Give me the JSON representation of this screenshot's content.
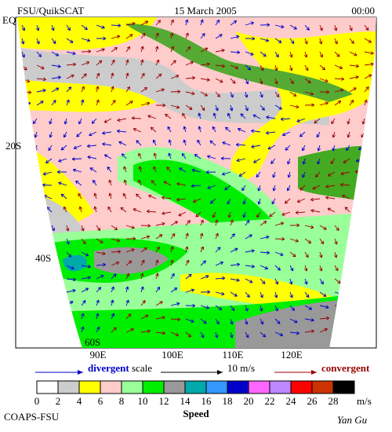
{
  "header": {
    "title": "FSU/QuikSCAT",
    "date": "15 March 2005",
    "time": "00:00"
  },
  "map": {
    "lat_labels": [
      "EQ",
      "20S",
      "40S",
      "60S"
    ],
    "lon_labels": [
      "90E",
      "100E",
      "110E",
      "120E"
    ]
  },
  "scale_legend": {
    "divergent": "divergent",
    "scale": "scale",
    "scale_value": "10 m/s",
    "convergent": "convergent"
  },
  "colorbar": {
    "labels": [
      0,
      2,
      4,
      6,
      8,
      10,
      12,
      14,
      16,
      18,
      20,
      22,
      24,
      26,
      28
    ],
    "colors": [
      "#ffffff",
      "#cccccc",
      "#ffff00",
      "#ffcccc",
      "#99ff99",
      "#00ee00",
      "#999999",
      "#00aaaa",
      "#3399ff",
      "#0000cc",
      "#ff66ff",
      "#bb88ff",
      "#ff0000",
      "#cc3300",
      "#000000"
    ],
    "unit": "m/s",
    "title": "Speed"
  },
  "footer": {
    "source": "COAPS-FSU",
    "author": "Yan Gu"
  }
}
